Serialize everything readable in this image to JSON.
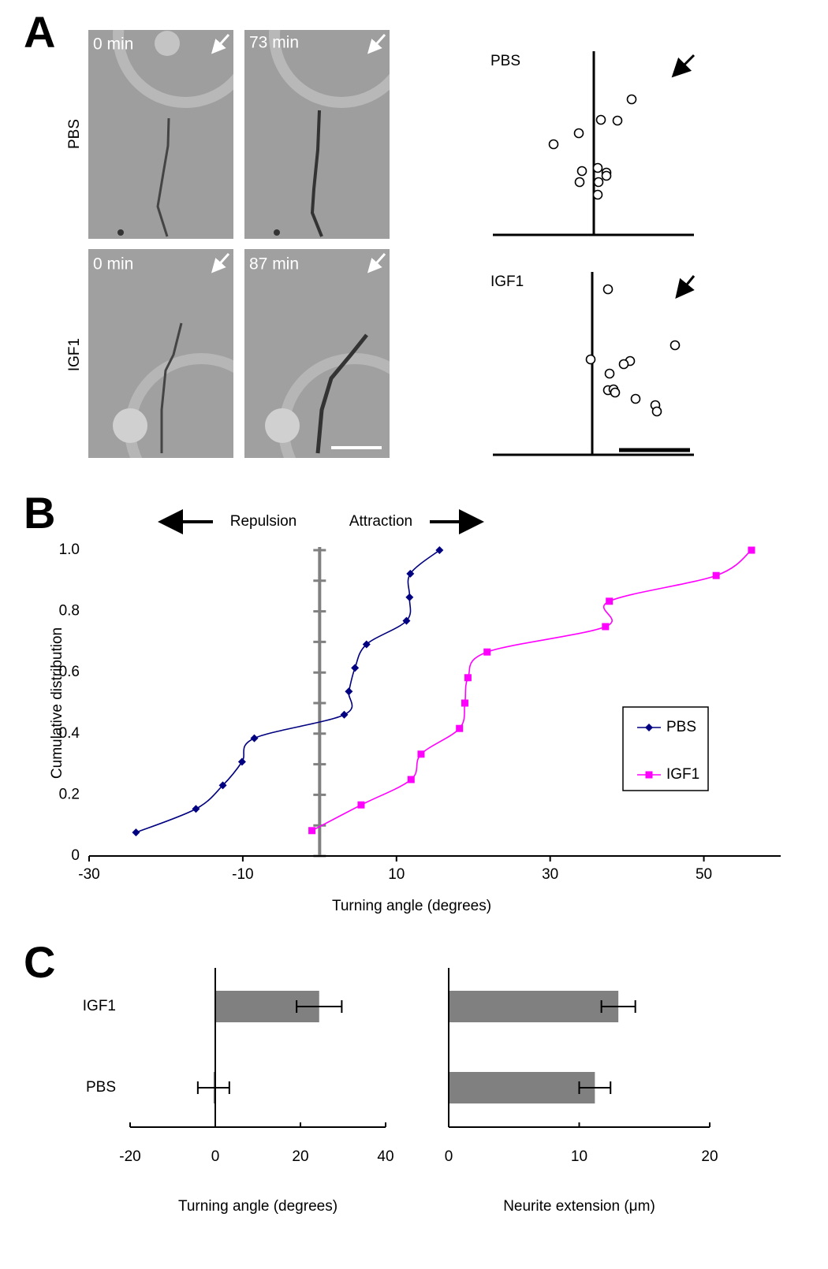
{
  "panel_labels": [
    "A",
    "B",
    "C"
  ],
  "micrographs": {
    "row_labels": [
      "PBS",
      "IGF1"
    ],
    "time_labels": [
      [
        "0 min",
        "73 min"
      ],
      [
        "0 min",
        "87 min"
      ]
    ]
  },
  "chart_data": [
    {
      "type": "scatter",
      "title": "PBS",
      "color": "#000000",
      "x": [
        48,
        9,
        30,
        -19,
        -51,
        -15,
        5,
        16,
        16,
        -18,
        6,
        5
      ],
      "y": [
        172,
        146,
        145,
        129,
        115,
        81,
        85,
        79,
        75,
        67,
        67,
        51
      ],
      "xlim": [
        -128,
        127
      ],
      "ylim": [
        0,
        233
      ]
    },
    {
      "type": "scatter",
      "title": "IGF1",
      "color": "#000000",
      "x": [
        20,
        105,
        -2,
        48,
        40,
        22,
        20,
        27,
        29,
        55,
        80,
        82
      ],
      "y": [
        210,
        139,
        121,
        119,
        115,
        103,
        82,
        83,
        79,
        71,
        63,
        55
      ],
      "xlim": [
        -126,
        129
      ],
      "ylim": [
        0,
        232
      ]
    },
    {
      "type": "line",
      "xlabel": "Turning angle (degrees)",
      "ylabel": "Cumulative distribution",
      "annotations": [
        "Repulsion",
        "Attraction"
      ],
      "series": [
        {
          "name": "PBS",
          "color": "#000080",
          "marker": "diamond",
          "x": [
            -23.9,
            -16.1,
            -12.6,
            -10.1,
            -8.5,
            3.2,
            3.8,
            4.6,
            6.1,
            11.3,
            11.7,
            11.8,
            15.6
          ],
          "values": [
            0.077,
            0.154,
            0.231,
            0.308,
            0.385,
            0.462,
            0.538,
            0.615,
            0.692,
            0.769,
            0.846,
            0.923,
            1.0
          ]
        },
        {
          "name": "IGF1",
          "color": "#ff00ff",
          "marker": "square",
          "x": [
            -1.0,
            5.4,
            11.9,
            13.2,
            18.2,
            18.9,
            19.3,
            21.8,
            37.2,
            37.7,
            51.6,
            56.2
          ],
          "values": [
            0.083,
            0.167,
            0.25,
            0.333,
            0.417,
            0.5,
            0.583,
            0.667,
            0.75,
            0.833,
            0.917,
            1.0
          ]
        }
      ],
      "xlim": [
        -30,
        60
      ],
      "xticks": [
        -30,
        -10,
        10,
        30,
        50
      ],
      "ylim": [
        0,
        1
      ],
      "yticks": [
        0,
        0.2,
        0.4,
        0.6,
        0.8,
        {
          "value": 1,
          "label": "1.0"
        }
      ],
      "minor_yticks": [
        0.1,
        0.3,
        0.5,
        0.7,
        0.9
      ],
      "legend": "right"
    },
    {
      "type": "bar",
      "horizontal": true,
      "color": "#808080",
      "categories": [
        "IGF1",
        "PBS"
      ],
      "values": [
        24.4,
        -0.4
      ],
      "errors": [
        5.3,
        3.7
      ],
      "xlim": [
        -20,
        40
      ],
      "xticks": [
        -20,
        0,
        20,
        40
      ],
      "xlabel": "Turning angle (degrees)"
    },
    {
      "type": "bar",
      "horizontal": true,
      "color": "#808080",
      "values": [
        13.0,
        11.2
      ],
      "errors": [
        1.3,
        1.2
      ],
      "xlim": [
        0,
        20
      ],
      "xticks": [
        0,
        10,
        20
      ],
      "xlabel": "Neurite extension (μm)"
    }
  ]
}
